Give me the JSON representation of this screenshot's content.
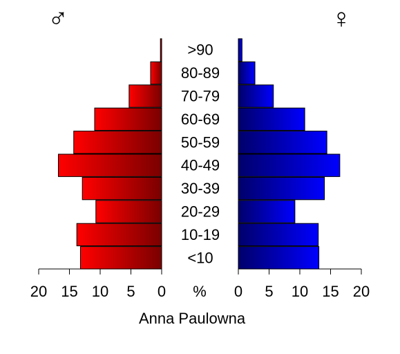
{
  "chart_data": {
    "type": "bar",
    "subtype": "population-pyramid",
    "title": "",
    "xlabel": "Anna Paulowna",
    "center_label": "%",
    "categories": [
      "<10",
      "10-19",
      "20-29",
      "30-39",
      "40-49",
      "50-59",
      "60-69",
      "70-79",
      "80-89",
      ">90"
    ],
    "series": [
      {
        "symbol": "♂",
        "side": "left",
        "color_light": "#ff0000",
        "color_dark": "#7a0000",
        "values": [
          13.2,
          13.8,
          10.7,
          12.9,
          16.8,
          14.3,
          10.9,
          5.3,
          1.8,
          0.2
        ]
      },
      {
        "symbol": "♀",
        "side": "right",
        "color_light": "#0000ff",
        "color_dark": "#00006b",
        "values": [
          13.1,
          13.0,
          9.2,
          14.0,
          16.5,
          14.4,
          10.8,
          5.7,
          2.7,
          0.6
        ]
      }
    ],
    "xlim": [
      0,
      20
    ],
    "xticks": [
      "0",
      "5",
      "10",
      "15",
      "20"
    ],
    "xticks_left": [
      "20",
      "15",
      "10",
      "5",
      "0"
    ],
    "grid": false,
    "legend": "none"
  }
}
